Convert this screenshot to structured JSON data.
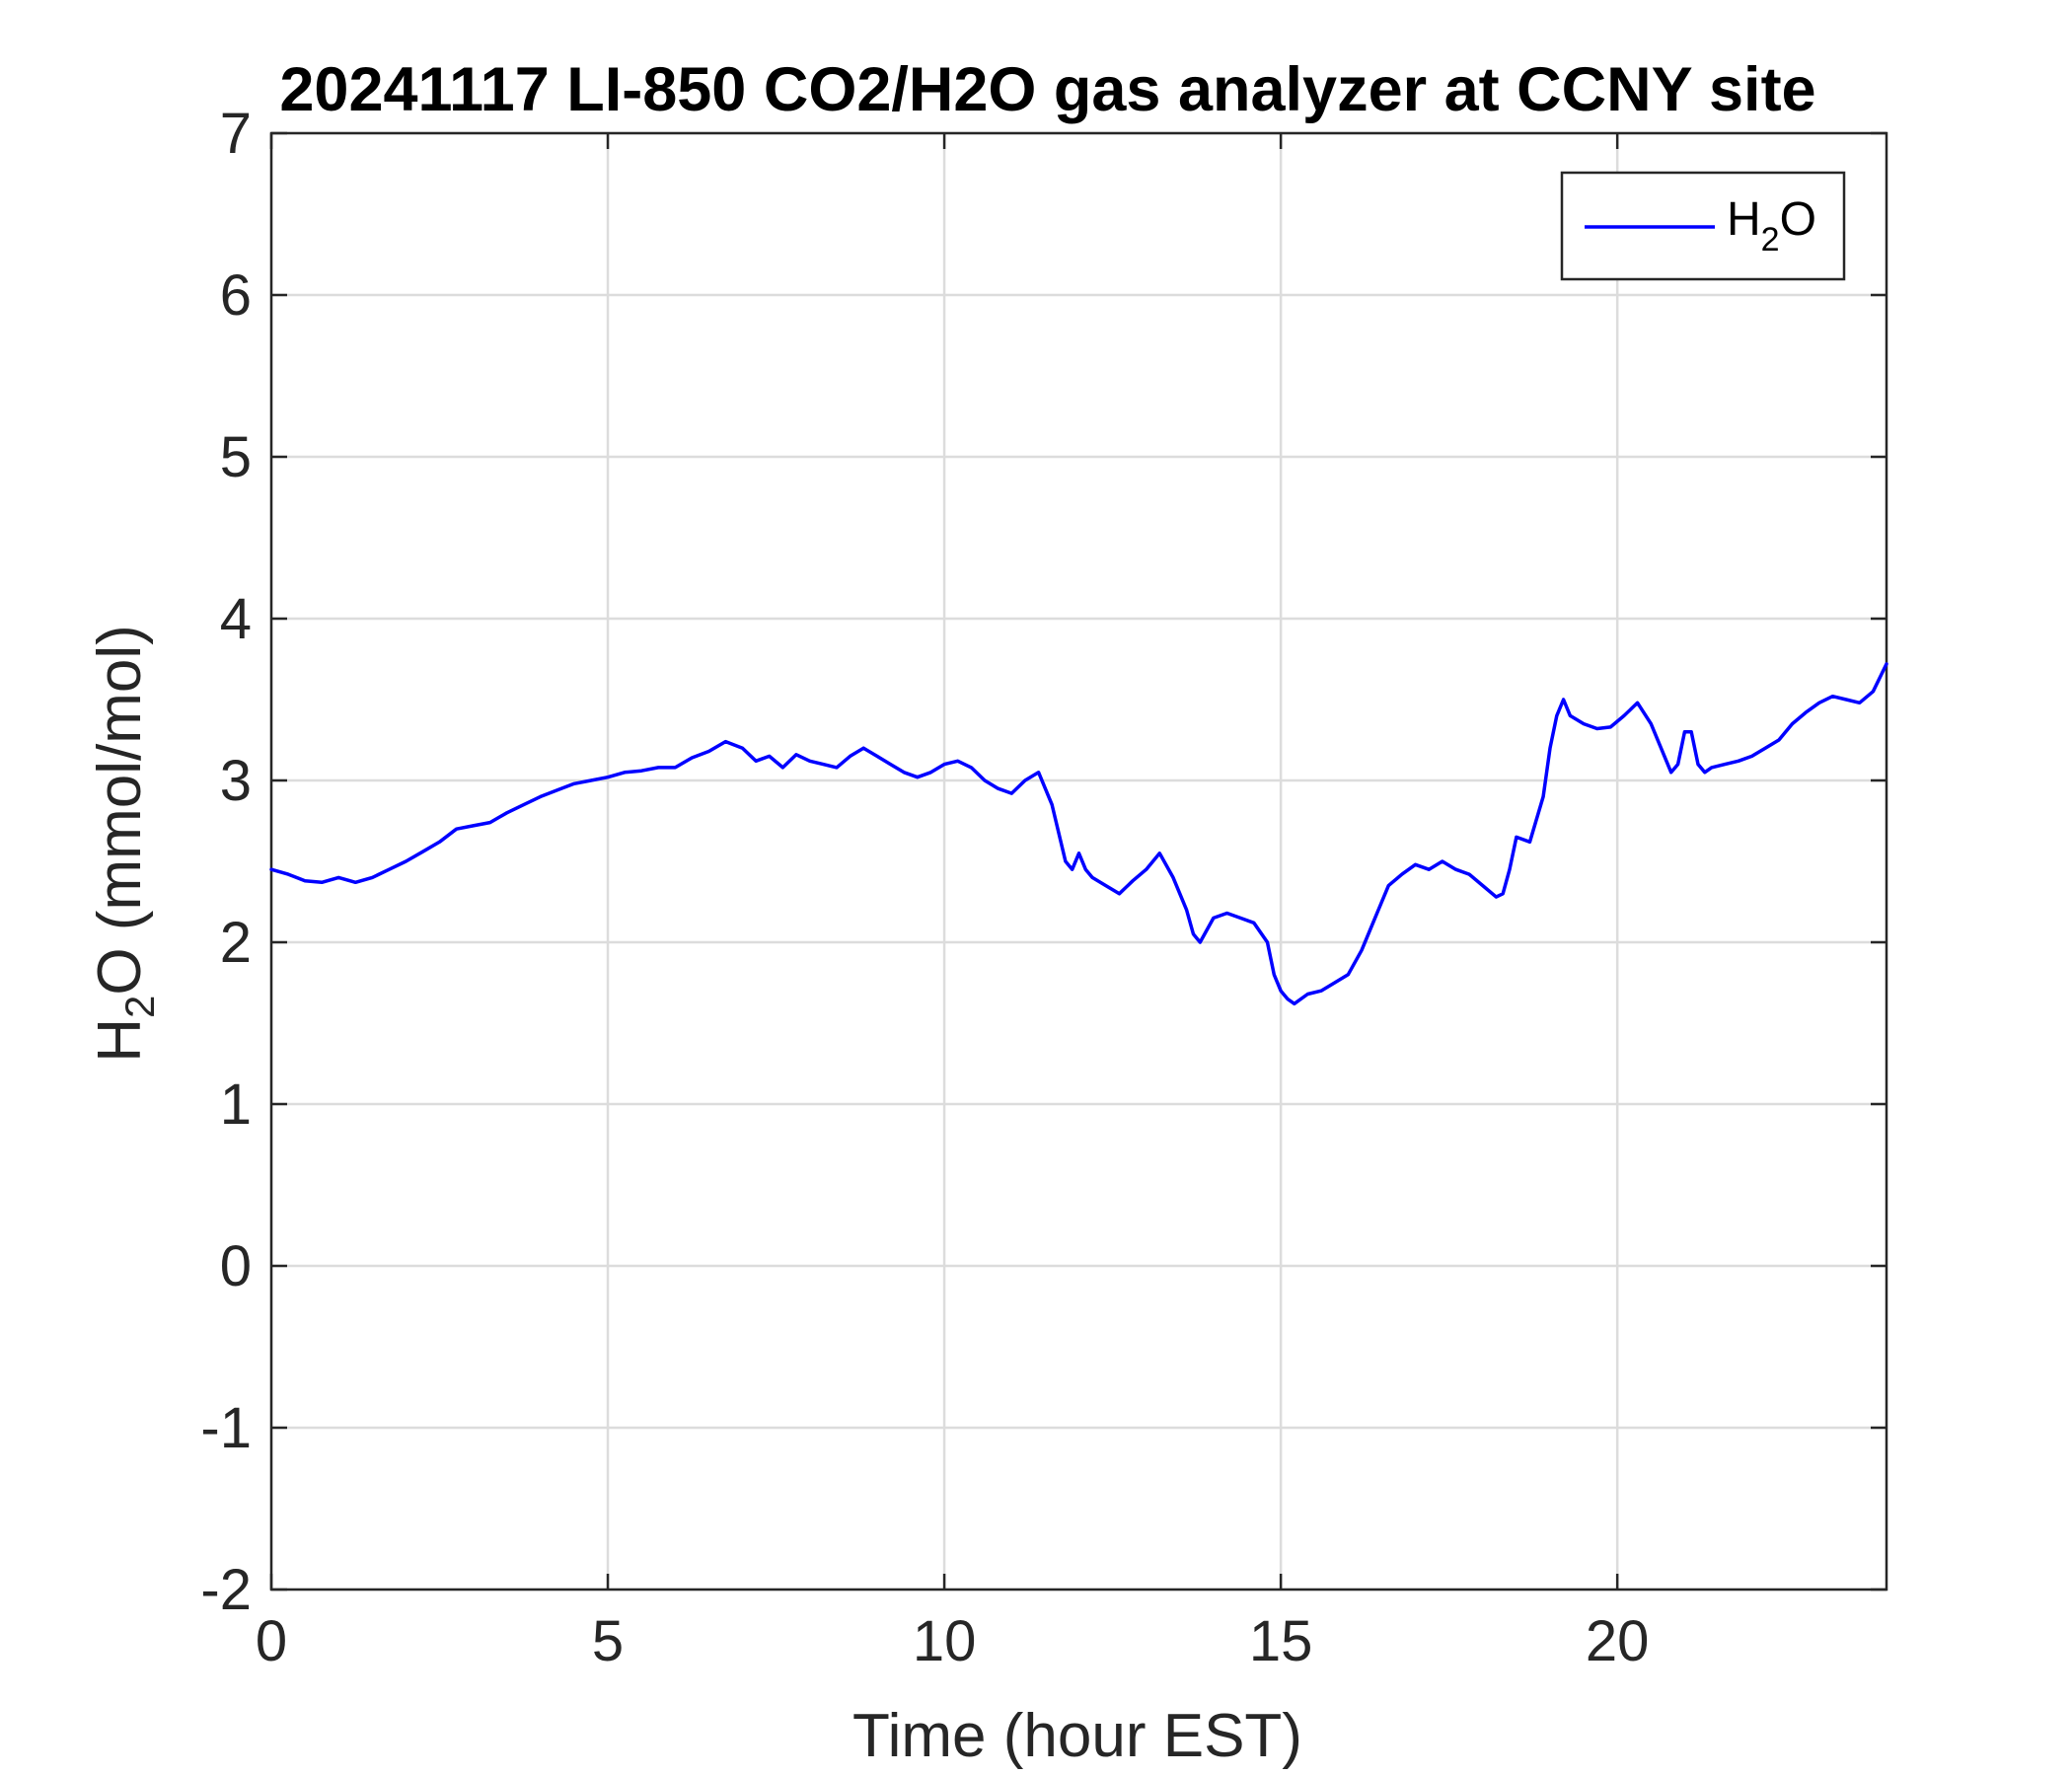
{
  "chart_data": {
    "type": "line",
    "title": "20241117 LI-850 CO2/H2O gas analyzer at CCNY site",
    "xlabel": "Time (hour EST)",
    "ylabel": {
      "main": "H",
      "sub": "2",
      "rest": "O (mmol/mol)"
    },
    "xlim": [
      0,
      24
    ],
    "ylim": [
      -2,
      7
    ],
    "xticks": [
      0,
      5,
      10,
      15,
      20
    ],
    "yticks": [
      -2,
      -1,
      0,
      1,
      2,
      3,
      4,
      5,
      6,
      7
    ],
    "grid": true,
    "legend_position": "top-right",
    "series": [
      {
        "name": {
          "main": "H",
          "sub": "2",
          "rest": "O"
        },
        "color": "#0000ff",
        "x": [
          0,
          0.25,
          0.5,
          0.75,
          1.0,
          1.25,
          1.5,
          1.75,
          2.0,
          2.25,
          2.5,
          2.75,
          3.0,
          3.25,
          3.5,
          3.75,
          4.0,
          4.25,
          4.5,
          4.75,
          5.0,
          5.25,
          5.5,
          5.75,
          6.0,
          6.25,
          6.5,
          6.75,
          7.0,
          7.2,
          7.4,
          7.6,
          7.8,
          8.0,
          8.2,
          8.4,
          8.6,
          8.8,
          9.0,
          9.2,
          9.4,
          9.6,
          9.8,
          10.0,
          10.2,
          10.4,
          10.6,
          10.8,
          11.0,
          11.2,
          11.4,
          11.6,
          11.8,
          11.9,
          12.0,
          12.1,
          12.2,
          12.4,
          12.6,
          12.8,
          13.0,
          13.2,
          13.4,
          13.6,
          13.7,
          13.8,
          14.0,
          14.2,
          14.4,
          14.6,
          14.8,
          14.9,
          15.0,
          15.1,
          15.2,
          15.4,
          15.6,
          15.8,
          16.0,
          16.2,
          16.4,
          16.6,
          16.8,
          17.0,
          17.2,
          17.4,
          17.6,
          17.8,
          18.0,
          18.2,
          18.3,
          18.4,
          18.5,
          18.7,
          18.9,
          19.0,
          19.1,
          19.2,
          19.3,
          19.5,
          19.7,
          19.9,
          20.1,
          20.3,
          20.5,
          20.7,
          20.8,
          20.9,
          21.0,
          21.1,
          21.2,
          21.3,
          21.4,
          21.6,
          21.8,
          22.0,
          22.2,
          22.4,
          22.6,
          22.8,
          23.0,
          23.2,
          23.4,
          23.6,
          23.8,
          24.0
        ],
        "y": [
          2.45,
          2.42,
          2.38,
          2.37,
          2.4,
          2.37,
          2.4,
          2.45,
          2.5,
          2.56,
          2.62,
          2.7,
          2.72,
          2.74,
          2.8,
          2.85,
          2.9,
          2.94,
          2.98,
          3.0,
          3.02,
          3.05,
          3.06,
          3.08,
          3.08,
          3.14,
          3.18,
          3.24,
          3.2,
          3.12,
          3.15,
          3.08,
          3.16,
          3.12,
          3.1,
          3.08,
          3.15,
          3.2,
          3.15,
          3.1,
          3.05,
          3.02,
          3.05,
          3.1,
          3.12,
          3.08,
          3.0,
          2.95,
          2.92,
          3.0,
          3.05,
          2.85,
          2.5,
          2.45,
          2.55,
          2.45,
          2.4,
          2.35,
          2.3,
          2.38,
          2.45,
          2.55,
          2.4,
          2.2,
          2.05,
          2.0,
          2.15,
          2.18,
          2.15,
          2.12,
          2.0,
          1.8,
          1.7,
          1.65,
          1.62,
          1.68,
          1.7,
          1.75,
          1.8,
          1.95,
          2.15,
          2.35,
          2.42,
          2.48,
          2.45,
          2.5,
          2.45,
          2.42,
          2.35,
          2.28,
          2.3,
          2.45,
          2.65,
          2.62,
          2.9,
          3.2,
          3.4,
          3.5,
          3.4,
          3.35,
          3.32,
          3.33,
          3.4,
          3.48,
          3.35,
          3.15,
          3.05,
          3.1,
          3.3,
          3.3,
          3.1,
          3.05,
          3.08,
          3.1,
          3.12,
          3.15,
          3.2,
          3.25,
          3.35,
          3.42,
          3.48,
          3.52,
          3.5,
          3.48,
          3.55,
          3.72
        ]
      }
    ]
  }
}
